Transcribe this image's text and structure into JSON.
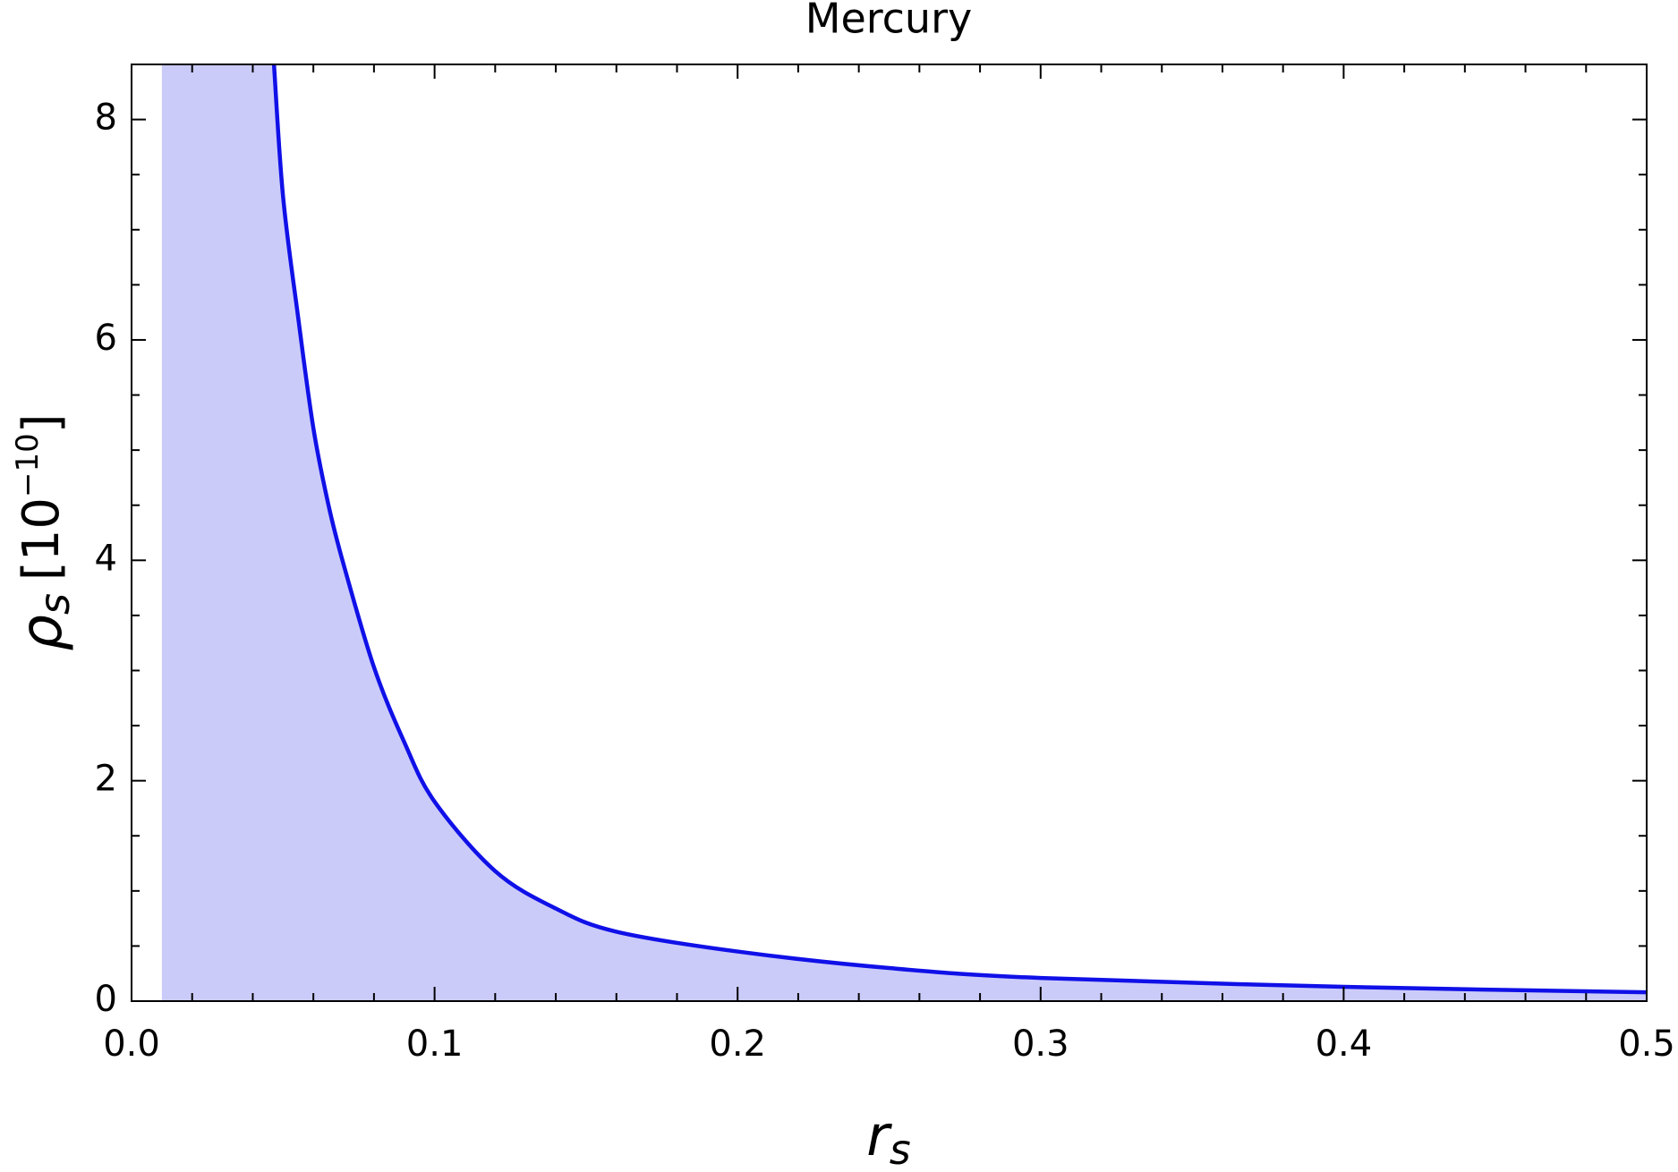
{
  "chart_data": {
    "type": "line",
    "title": "Mercury",
    "xlabel": {
      "base": "r",
      "sub": "s"
    },
    "ylabel": {
      "base": "ρ",
      "sub": "s",
      "unit": "[10",
      "exp": "−10",
      "close": "]"
    },
    "xlim": [
      0,
      0.5
    ],
    "ylim": [
      0,
      8.5
    ],
    "xticks": [
      {
        "value": 0,
        "label": "0.0"
      },
      0.1,
      0.2,
      0.3,
      0.4,
      0.5
    ],
    "yticks": [
      0,
      2,
      4,
      6,
      8
    ],
    "xminor": [
      0.02,
      0.04,
      0.06,
      0.08,
      0.12,
      0.14,
      0.16,
      0.18,
      0.22,
      0.24,
      0.26,
      0.28,
      0.32,
      0.34,
      0.36,
      0.38,
      0.42,
      0.44,
      0.46,
      0.48
    ],
    "yminor": [
      0.5,
      1,
      1.5,
      2.5,
      3,
      3.5,
      4.5,
      5,
      5.5,
      6.5,
      7,
      7.5
    ],
    "fill_from": 0.01,
    "fill_color": "#cbcbfa",
    "series": [
      {
        "color": "#1010e8",
        "x": [
          0.047,
          0.05,
          0.055,
          0.06,
          0.065,
          0.07,
          0.08,
          0.09,
          0.1,
          0.12,
          0.14,
          0.16,
          0.2,
          0.25,
          0.3,
          0.4,
          0.5
        ],
        "values": [
          8.5,
          7.3,
          6.2,
          5.2,
          4.5,
          3.96,
          3.03,
          2.35,
          1.81,
          1.18,
          0.84,
          0.63,
          0.45,
          0.3,
          0.21,
          0.13,
          0.08
        ]
      }
    ]
  }
}
